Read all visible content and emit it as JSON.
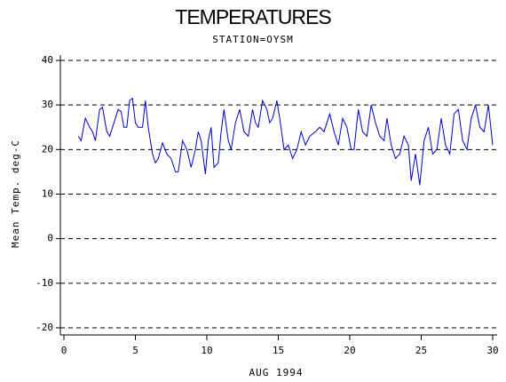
{
  "chart_data": {
    "type": "line",
    "title": "TEMPERATURES",
    "subtitle": "STATION=OYSM",
    "xlabel": "AUG 1994",
    "ylabel": "Mean Temp. deg-C",
    "x": [
      1,
      1.2,
      1.5,
      1.8,
      2,
      2.2,
      2.5,
      2.7,
      3,
      3.2,
      3.5,
      3.8,
      4,
      4.2,
      4.4,
      4.6,
      4.8,
      5,
      5.2,
      5.5,
      5.7,
      5.9,
      6.2,
      6.4,
      6.6,
      6.9,
      7.2,
      7.5,
      7.8,
      8,
      8.3,
      8.6,
      8.9,
      9.2,
      9.4,
      9.6,
      9.9,
      10.1,
      10.3,
      10.5,
      10.8,
      11,
      11.2,
      11.5,
      11.7,
      12,
      12.3,
      12.6,
      12.9,
      13.2,
      13.4,
      13.6,
      13.9,
      14.2,
      14.4,
      14.6,
      14.9,
      15.1,
      15.4,
      15.7,
      16,
      16.3,
      16.6,
      16.9,
      17.2,
      17.6,
      17.9,
      18.2,
      18.6,
      18.9,
      19.2,
      19.5,
      19.8,
      20.1,
      20.3,
      20.6,
      20.9,
      21.2,
      21.5,
      21.8,
      22.1,
      22.4,
      22.6,
      22.9,
      23.2,
      23.5,
      23.8,
      24.1,
      24.3,
      24.6,
      24.9,
      25.2,
      25.5,
      25.8,
      26.1,
      26.4,
      26.7,
      27,
      27.3,
      27.6,
      27.9,
      28.2,
      28.5,
      28.8,
      29.1,
      29.4,
      29.7,
      30
    ],
    "series": [
      {
        "name": "Mean Temp",
        "color": "#0000cc",
        "values": [
          23,
          22,
          27,
          25,
          24,
          22,
          29,
          29.5,
          24,
          23,
          26,
          29,
          28.5,
          25,
          25,
          31,
          31.5,
          26,
          25,
          25,
          31,
          25,
          19,
          17,
          18,
          21.5,
          19,
          18,
          15,
          15,
          22,
          20,
          16,
          20,
          24,
          22,
          14.5,
          22,
          25,
          16,
          17,
          24,
          29,
          22,
          20,
          26,
          29,
          24,
          23,
          29,
          26,
          25,
          31,
          29,
          26,
          27,
          31,
          27,
          20,
          21,
          18,
          20,
          24,
          21,
          23,
          24,
          25,
          24,
          28,
          24,
          21,
          27,
          25,
          20,
          20,
          29,
          24,
          23,
          30,
          26,
          23,
          22,
          27,
          21,
          18,
          19,
          23,
          21,
          13,
          19,
          12,
          22,
          25,
          19,
          20,
          27,
          21,
          19,
          28,
          29,
          22,
          20,
          27,
          30,
          25,
          24,
          30,
          21
        ]
      }
    ],
    "xlim": [
      0,
      30
    ],
    "xticks": [
      0,
      5,
      10,
      15,
      20,
      25,
      30
    ],
    "ylim": [
      -20,
      40
    ],
    "yticks": [
      -20,
      -10,
      0,
      10,
      20,
      30,
      40
    ],
    "grid": true
  }
}
